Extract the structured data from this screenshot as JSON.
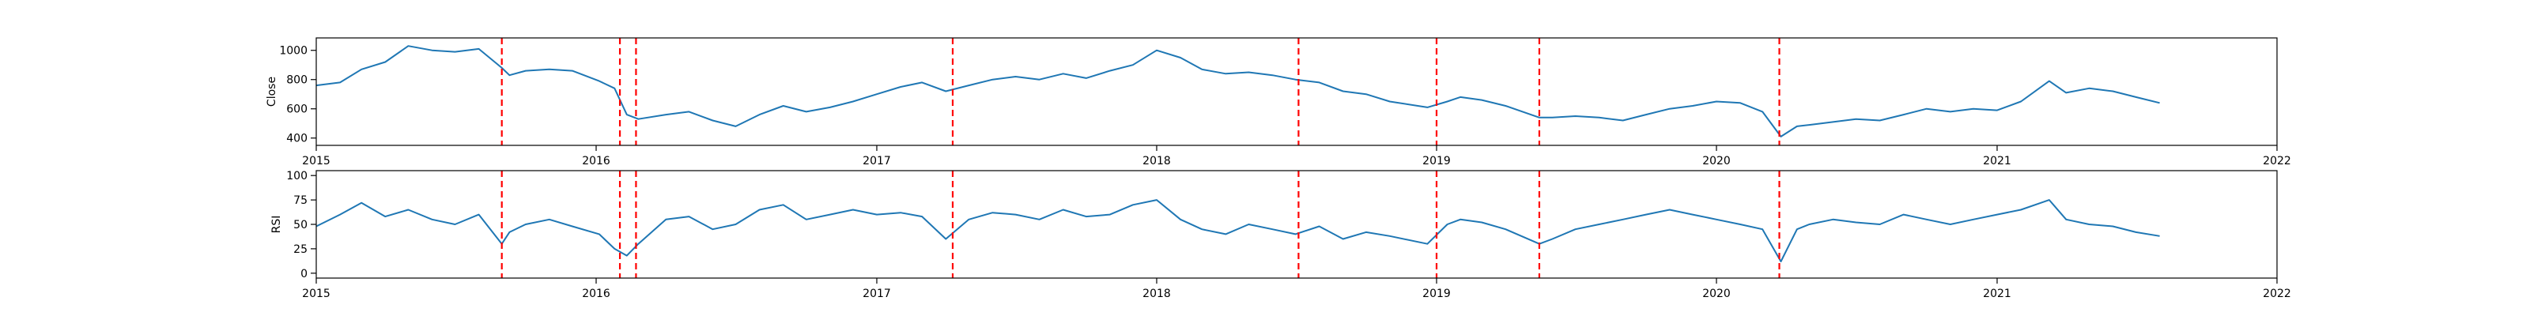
{
  "chart_data": [
    {
      "type": "line",
      "ylabel": "Close",
      "xlim": [
        "2015-01-01",
        "2022-01-01"
      ],
      "ylim": [
        350,
        1085
      ],
      "x_ticks": [
        "2015",
        "2016",
        "2017",
        "2018",
        "2019",
        "2020",
        "2021",
        "2022"
      ],
      "y_ticks": [
        400,
        600,
        800,
        1000
      ],
      "grid": false,
      "line_color": "#1f77b4",
      "series": [
        {
          "x": [
            "2015-01-01",
            "2015-02-01",
            "2015-03-01",
            "2015-04-01",
            "2015-05-01",
            "2015-06-01",
            "2015-07-01",
            "2015-08-01",
            "2015-08-31",
            "2015-09-10",
            "2015-10-01",
            "2015-11-01",
            "2015-12-01",
            "2016-01-05",
            "2016-01-25",
            "2016-02-10",
            "2016-02-25",
            "2016-04-01",
            "2016-05-01",
            "2016-06-01",
            "2016-07-01",
            "2016-08-01",
            "2016-09-01",
            "2016-10-01",
            "2016-11-01",
            "2016-12-01",
            "2017-01-01",
            "2017-02-01",
            "2017-03-01",
            "2017-04-01",
            "2017-05-01",
            "2017-06-01",
            "2017-07-01",
            "2017-08-01",
            "2017-09-01",
            "2017-10-01",
            "2017-11-01",
            "2017-12-01",
            "2018-01-01",
            "2018-02-01",
            "2018-03-01",
            "2018-04-01",
            "2018-05-01",
            "2018-06-01",
            "2018-07-01",
            "2018-08-01",
            "2018-09-01",
            "2018-10-01",
            "2018-11-01",
            "2018-12-20",
            "2019-01-15",
            "2019-02-01",
            "2019-03-01",
            "2019-04-01",
            "2019-05-15",
            "2019-06-01",
            "2019-07-01",
            "2019-08-01",
            "2019-09-01",
            "2019-10-01",
            "2019-11-01",
            "2019-12-01",
            "2020-01-01",
            "2020-02-01",
            "2020-03-01",
            "2020-03-25",
            "2020-04-15",
            "2020-05-01",
            "2020-06-01",
            "2020-07-01",
            "2020-08-01",
            "2020-09-01",
            "2020-10-01",
            "2020-11-01",
            "2020-12-01",
            "2021-01-01",
            "2021-02-01",
            "2021-03-10",
            "2021-04-01",
            "2021-05-01",
            "2021-06-01",
            "2021-07-01",
            "2021-08-01"
          ],
          "y": [
            760,
            780,
            870,
            920,
            1030,
            1000,
            990,
            1010,
            880,
            830,
            860,
            870,
            860,
            790,
            740,
            560,
            530,
            560,
            580,
            520,
            480,
            560,
            620,
            580,
            610,
            650,
            700,
            750,
            780,
            720,
            760,
            800,
            820,
            800,
            840,
            810,
            860,
            900,
            1000,
            950,
            870,
            840,
            850,
            830,
            800,
            780,
            720,
            700,
            650,
            610,
            650,
            680,
            660,
            620,
            540,
            540,
            550,
            540,
            520,
            560,
            600,
            620,
            650,
            640,
            580,
            410,
            480,
            490,
            510,
            530,
            520,
            560,
            600,
            580,
            600,
            590,
            650,
            790,
            710,
            740,
            720,
            680,
            640
          ]
        }
      ]
    },
    {
      "type": "line",
      "ylabel": "RSI",
      "xlim": [
        "2015-01-01",
        "2022-01-01"
      ],
      "ylim": [
        -5,
        105
      ],
      "x_ticks": [
        "2015",
        "2016",
        "2017",
        "2018",
        "2019",
        "2020",
        "2021",
        "2022"
      ],
      "y_ticks": [
        0,
        25,
        50,
        75,
        100
      ],
      "grid": false,
      "line_color": "#1f77b4",
      "series": [
        {
          "x": [
            "2015-01-01",
            "2015-02-01",
            "2015-03-01",
            "2015-04-01",
            "2015-05-01",
            "2015-06-01",
            "2015-07-01",
            "2015-08-01",
            "2015-08-31",
            "2015-09-10",
            "2015-10-01",
            "2015-11-01",
            "2015-12-01",
            "2016-01-05",
            "2016-01-25",
            "2016-02-10",
            "2016-02-25",
            "2016-04-01",
            "2016-05-01",
            "2016-06-01",
            "2016-07-01",
            "2016-08-01",
            "2016-09-01",
            "2016-10-01",
            "2016-11-01",
            "2016-12-01",
            "2017-01-01",
            "2017-02-01",
            "2017-03-01",
            "2017-04-01",
            "2017-05-01",
            "2017-06-01",
            "2017-07-01",
            "2017-08-01",
            "2017-09-01",
            "2017-10-01",
            "2017-11-01",
            "2017-12-01",
            "2018-01-01",
            "2018-02-01",
            "2018-03-01",
            "2018-04-01",
            "2018-05-01",
            "2018-06-01",
            "2018-07-01",
            "2018-08-01",
            "2018-09-01",
            "2018-10-01",
            "2018-11-01",
            "2018-12-20",
            "2019-01-15",
            "2019-02-01",
            "2019-03-01",
            "2019-04-01",
            "2019-05-15",
            "2019-06-01",
            "2019-07-01",
            "2019-08-01",
            "2019-09-01",
            "2019-10-01",
            "2019-11-01",
            "2019-12-01",
            "2020-01-01",
            "2020-02-01",
            "2020-03-01",
            "2020-03-25",
            "2020-04-15",
            "2020-05-01",
            "2020-06-01",
            "2020-07-01",
            "2020-08-01",
            "2020-09-01",
            "2020-10-01",
            "2020-11-01",
            "2020-12-01",
            "2021-01-01",
            "2021-02-01",
            "2021-03-10",
            "2021-04-01",
            "2021-05-01",
            "2021-06-01",
            "2021-07-01",
            "2021-08-01"
          ],
          "y": [
            48,
            60,
            72,
            58,
            65,
            55,
            50,
            60,
            30,
            42,
            50,
            55,
            48,
            40,
            25,
            18,
            30,
            55,
            58,
            45,
            50,
            65,
            70,
            55,
            60,
            65,
            60,
            62,
            58,
            35,
            55,
            62,
            60,
            55,
            65,
            58,
            60,
            70,
            75,
            55,
            45,
            40,
            50,
            45,
            40,
            48,
            35,
            42,
            38,
            30,
            50,
            55,
            52,
            45,
            30,
            35,
            45,
            50,
            55,
            60,
            65,
            60,
            55,
            50,
            45,
            12,
            45,
            50,
            55,
            52,
            50,
            60,
            55,
            50,
            55,
            60,
            65,
            75,
            55,
            50,
            48,
            42,
            38
          ]
        }
      ]
    }
  ],
  "events": {
    "dates": [
      "2015-08-31",
      "2016-02-01",
      "2016-02-22",
      "2017-04-10",
      "2018-07-05",
      "2019-01-01",
      "2019-05-15",
      "2020-03-23"
    ],
    "color": "#ff0000",
    "style": "dashed"
  }
}
